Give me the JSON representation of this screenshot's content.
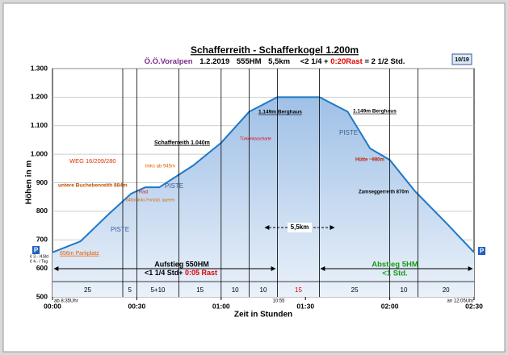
{
  "chart_data": {
    "type": "area",
    "title": "Schafferreith - Schafferkogel 1.200m",
    "subtitle_parts": [
      "Ö.Ö.Voralpen",
      "1.2.2019",
      "555HM",
      "5,5km",
      "<2 1/4 +",
      "0:20Rast",
      "= 2 1/2 Std."
    ],
    "badge": "10/19",
    "ylabel": "Höhen in m",
    "xlabel": "Zeit in Stunden",
    "color": "#1f78c8",
    "x": [
      0,
      10,
      20,
      28,
      33,
      38,
      50,
      60,
      70,
      80,
      95,
      105,
      113,
      120,
      129,
      140,
      150
    ],
    "values": [
      656,
      695,
      790,
      862,
      884,
      884,
      960,
      1040,
      1149,
      1200,
      1200,
      1149,
      1020,
      980,
      870,
      760,
      656
    ],
    "xlim": [
      0,
      150
    ],
    "xticks": [
      {
        "value": 0,
        "label": "00:00"
      },
      {
        "value": 30,
        "label": "00:30"
      },
      {
        "value": 60,
        "label": "01:00"
      },
      {
        "value": 90,
        "label": "01:30"
      },
      {
        "value": 120,
        "label": "02:00"
      },
      {
        "value": 150,
        "label": "02:30"
      }
    ],
    "ylim": [
      500,
      1300
    ],
    "yticks": [
      500,
      600,
      700,
      800,
      900,
      {
        "value": 1000,
        "label": "1.000"
      },
      {
        "value": 1100,
        "label": "1.100"
      },
      {
        "value": 1200,
        "label": "1.200"
      },
      {
        "value": 1300,
        "label": "1.300"
      }
    ],
    "grid": true,
    "dividers": [
      25,
      30,
      45,
      60,
      70,
      80,
      95,
      120,
      130
    ],
    "segment_labels": [
      "25",
      "5",
      "5+10",
      "15",
      "10",
      "10",
      "15",
      "25",
      "10",
      "20"
    ],
    "annotations": {
      "start_time": "ab 8:35Uhr",
      "summit_time": "10:55",
      "end_time": "an 12:05Uhr",
      "parking": "656m Parkplatz",
      "fee1": "€ 3.- /4Std",
      "fee2": "€ 4.- / Tag",
      "p_left": "P",
      "p_right": "P",
      "weg": "WEG 16/209/280",
      "buchebenreith": "untere Buchebenreith 884m",
      "rast": "Rast",
      "forststr": "845m links Forststr. queren",
      "links_ab": "links ab 945m",
      "schafferreith": "Schafferreith 1.040m",
      "tuerken": "Türkenkarscharte",
      "berghaus1": "1.149m Berghaus",
      "berghaus2": "1.149m Berghaus",
      "huette": "Hütte ~980m",
      "zamsegg": "Zamseggerreith 870m",
      "piste1": "PISTE",
      "piste2": "PISTE",
      "piste3": "PISTE",
      "distance": "5,5km",
      "up1": "Aufstieg 550HM",
      "up2": "<1 1/4 Std+",
      "up3": "0:05 Rast",
      "down1": "Abstieg 5HM",
      "down2": "<1 Std."
    }
  }
}
